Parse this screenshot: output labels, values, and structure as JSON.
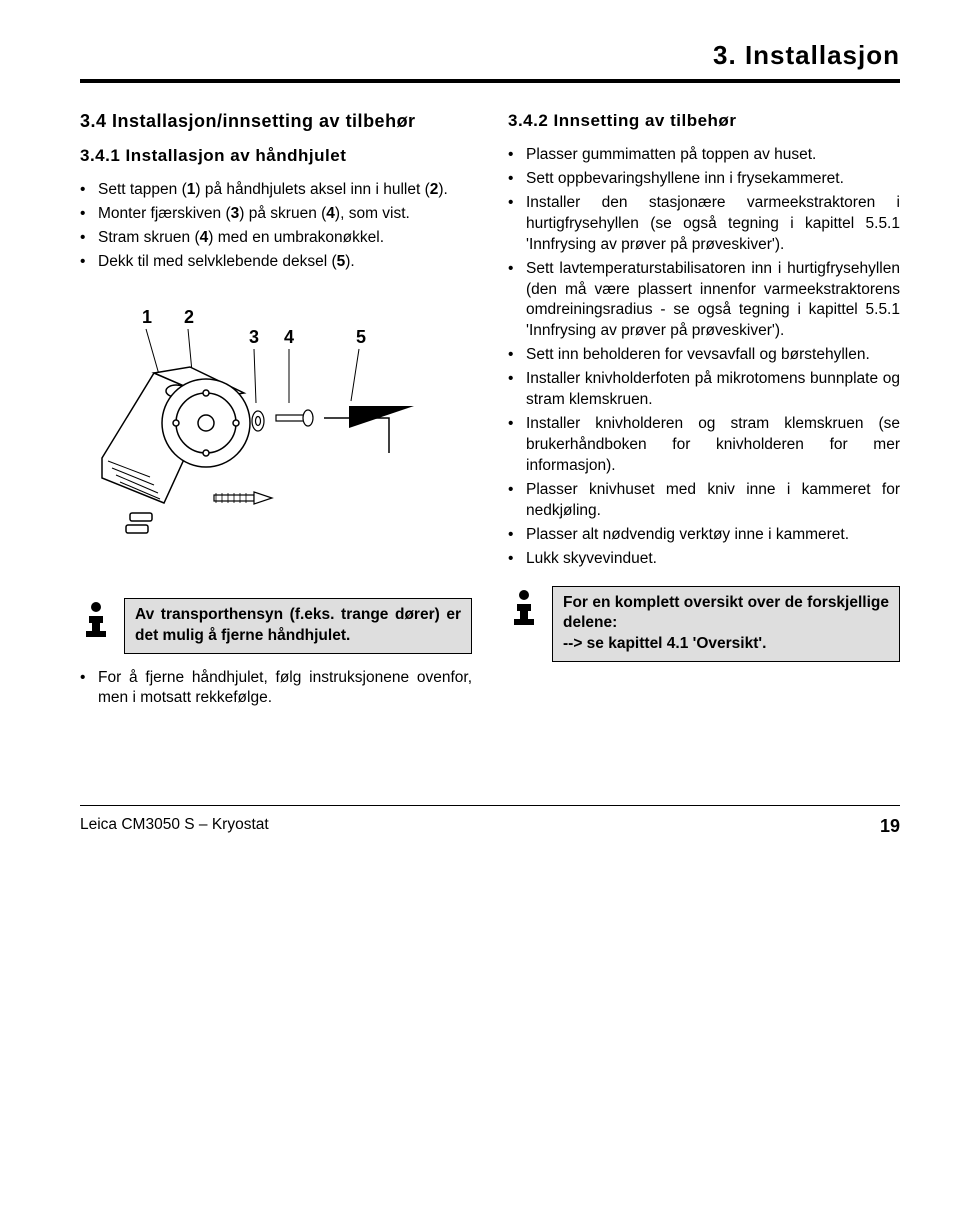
{
  "chapter_header": "3.   Installasjon",
  "left": {
    "section_heading": "3.4   Installasjon/innsetting av tilbehør",
    "sub_heading": "3.4.1  Installasjon av håndhjulet",
    "bullets1": [
      "Sett tappen (<b>1</b>) på håndhjulets aksel inn i hullet (<b>2</b>).",
      "Monter fjærskiven (<b>3</b>) på skruen (<b>4</b>), som vist.",
      "Stram skruen (<b>4</b>) med en umbrakonøkkel.",
      "Dekk til med selvklebende deksel (<b>5</b>)."
    ],
    "figure_labels": [
      "1",
      "2",
      "3",
      "4",
      "5"
    ],
    "note": "Av transporthensyn (f.eks. trange dører) er det mulig å fjerne håndhjulet.",
    "bullets2": [
      "For å fjerne håndhjulet, følg instruksjonene ovenfor, men i motsatt rekkefølge."
    ]
  },
  "right": {
    "sub_heading": "3.4.2  Innsetting av tilbehør",
    "bullets": [
      "Plasser gummimatten på toppen av huset.",
      "Sett oppbevaringshyllene inn i frysekammeret.",
      "Installer den stasjonære varmeekstraktoren i hurtigfrysehyllen (se også tegning i kapittel 5.5.1 'Innfrysing av prøver på prøveskiver').",
      "Sett lavtemperaturstabilisatoren inn i hurtigfrysehyllen (den må være plassert innenfor varmeekstraktorens omdreiningsradius - se også tegning i kapittel 5.5.1 'Innfrysing av prøver på prøveskiver').",
      "Sett inn beholderen for vevsavfall og børstehyllen.",
      "Installer knivholderfoten på mikrotomens bunnplate og stram klemskruen.",
      "Installer knivholderen og stram klemskruen (se brukerhåndboken for knivholderen for mer informasjon).",
      "Plasser knivhuset med kniv inne i kammeret for nedkjøling.",
      "Plasser alt nødvendig verktøy inne i kammeret.",
      "Lukk skyvevinduet."
    ],
    "note": "For en komplett oversikt over de forskjellige delene:\n--> se kapittel 4.1 'Oversikt'."
  },
  "footer": {
    "product": "Leica CM3050 S – Kryostat",
    "page": "19"
  },
  "colors": {
    "ink": "#000000",
    "paper": "#ffffff",
    "note_bg": "#dedede"
  }
}
